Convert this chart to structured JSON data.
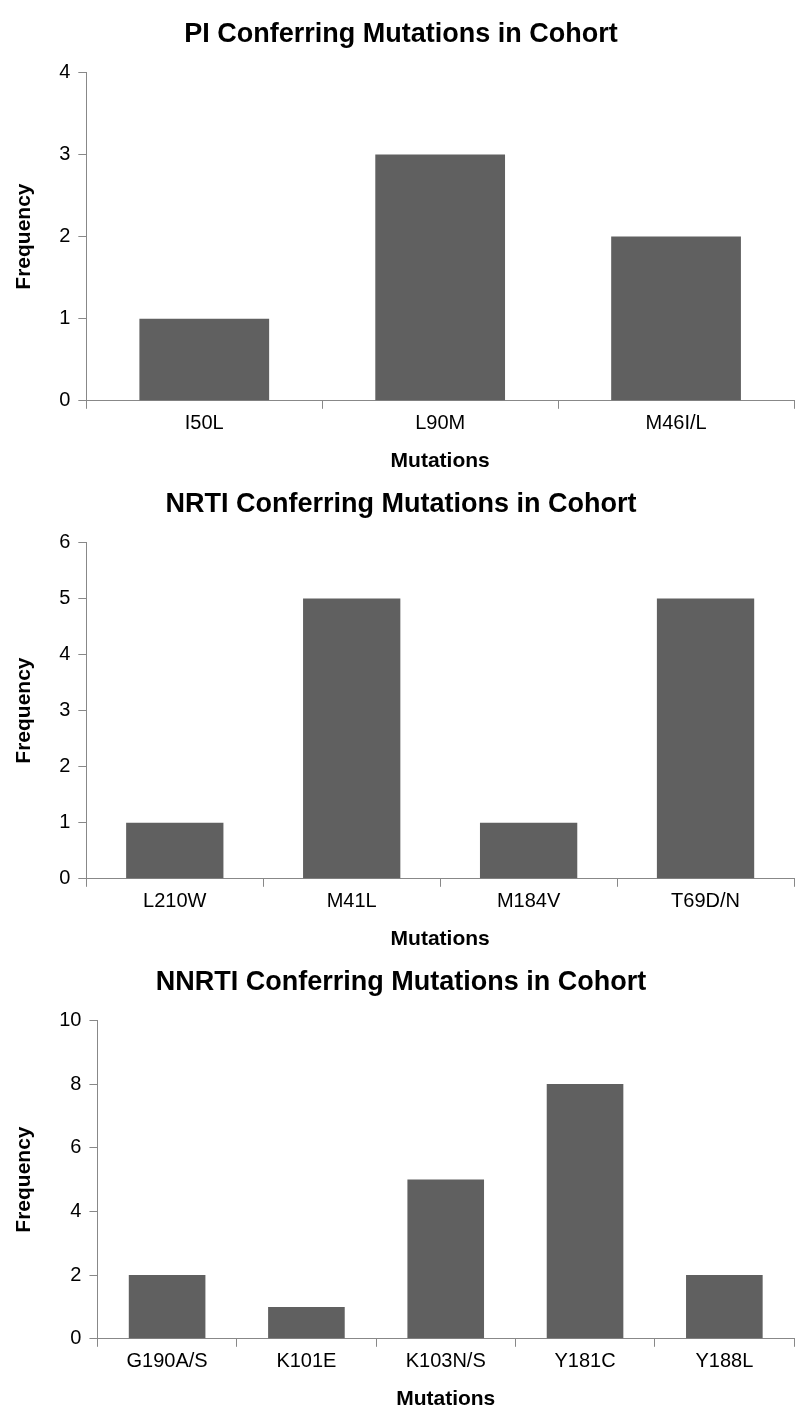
{
  "chart_data": [
    {
      "type": "bar",
      "title": "PI Conferring Mutations in Cohort",
      "xlabel": "Mutations",
      "ylabel": "Frequency",
      "categories": [
        "I50L",
        "L90M",
        "M46I/L"
      ],
      "values": [
        1,
        3,
        2
      ],
      "color": "#606060",
      "ylim": [
        0,
        4
      ],
      "yticks": [
        0,
        1,
        2,
        3,
        4
      ],
      "grid": false,
      "legend": false
    },
    {
      "type": "bar",
      "title": "NRTI Conferring Mutations in Cohort",
      "xlabel": "Mutations",
      "ylabel": "Frequency",
      "categories": [
        "L210W",
        "M41L",
        "M184V",
        "T69D/N"
      ],
      "values": [
        1,
        5,
        1,
        5
      ],
      "color": "#606060",
      "ylim": [
        0,
        6
      ],
      "yticks": [
        0,
        1,
        2,
        3,
        4,
        5,
        6
      ],
      "grid": false,
      "legend": false
    },
    {
      "type": "bar",
      "title": "NNRTI Conferring Mutations in Cohort",
      "xlabel": "Mutations",
      "ylabel": "Frequency",
      "categories": [
        "G190A/S",
        "K101E",
        "K103N/S",
        "Y181C",
        "Y188L"
      ],
      "values": [
        2,
        1,
        5,
        8,
        2
      ],
      "color": "#606060",
      "ylim": [
        0,
        10
      ],
      "yticks": [
        0,
        2,
        4,
        6,
        8,
        10
      ],
      "grid": false,
      "legend": false
    }
  ]
}
